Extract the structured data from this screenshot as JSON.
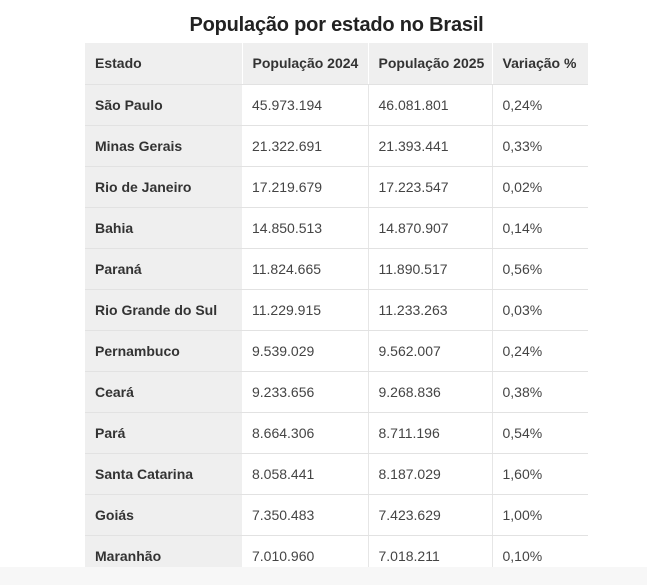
{
  "title": "População por estado no Brasil",
  "table": {
    "headers": [
      "Estado",
      "População 2024",
      "População 2025",
      "Variação %"
    ],
    "rows": [
      [
        "São Paulo",
        "45.973.194",
        "46.081.801",
        "0,24%"
      ],
      [
        "Minas Gerais",
        "21.322.691",
        "21.393.441",
        "0,33%"
      ],
      [
        "Rio de Janeiro",
        "17.219.679",
        "17.223.547",
        "0,02%"
      ],
      [
        "Bahia",
        "14.850.513",
        "14.870.907",
        "0,14%"
      ],
      [
        "Paraná",
        "11.824.665",
        "11.890.517",
        "0,56%"
      ],
      [
        "Rio Grande do Sul",
        "11.229.915",
        "11.233.263",
        "0,03%"
      ],
      [
        "Pernambuco",
        "9.539.029",
        "9.562.007",
        "0,24%"
      ],
      [
        "Ceará",
        "9.233.656",
        "9.268.836",
        "0,38%"
      ],
      [
        "Pará",
        "8.664.306",
        "8.711.196",
        "0,54%"
      ],
      [
        "Santa Catarina",
        "8.058.441",
        "8.187.029",
        "1,60%"
      ],
      [
        "Goiás",
        "7.350.483",
        "7.423.629",
        "1,00%"
      ],
      [
        "Maranhão",
        "7.010.960",
        "7.018.211",
        "0,10%"
      ]
    ]
  }
}
